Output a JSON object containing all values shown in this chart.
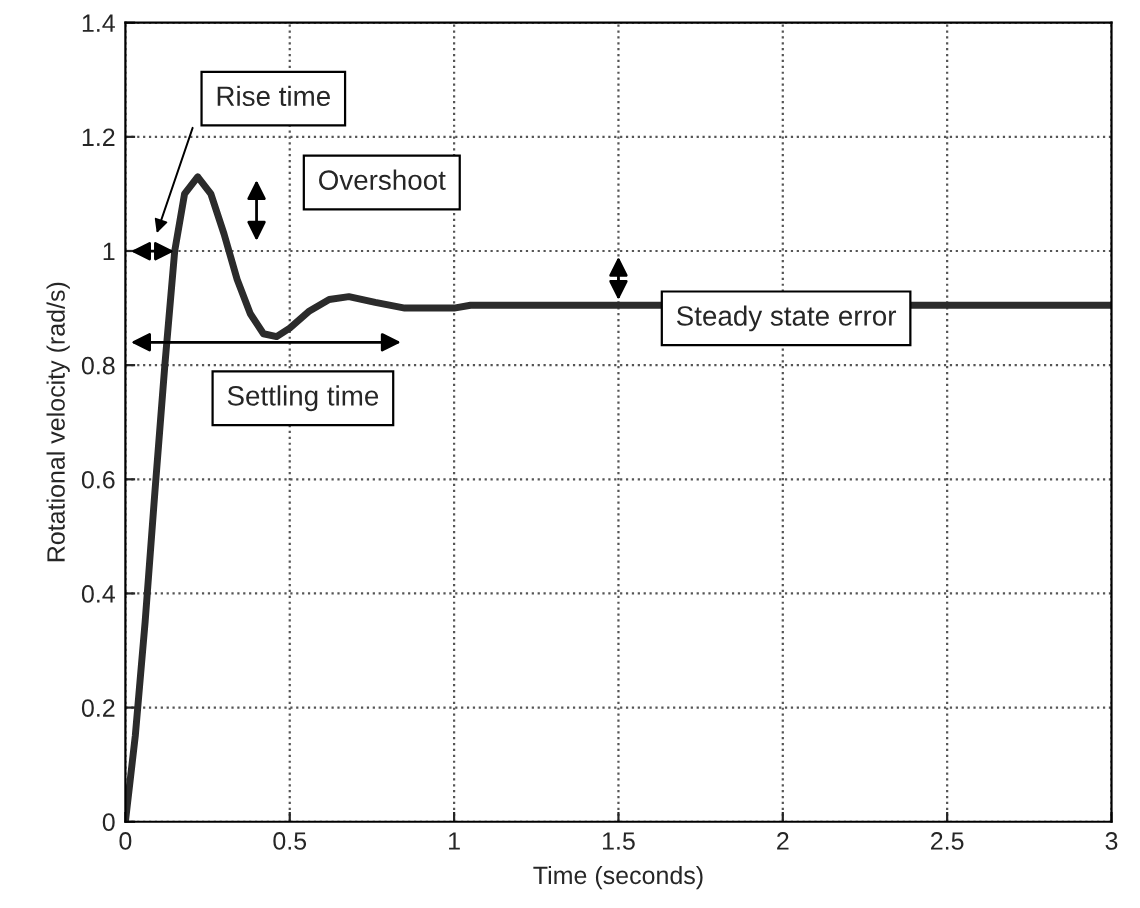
{
  "chart_data": {
    "type": "line",
    "xlabel": "Time (seconds)",
    "ylabel": "Rotational velocity (rad/s)",
    "x": [
      0,
      0.03,
      0.06,
      0.09,
      0.12,
      0.15,
      0.18,
      0.22,
      0.26,
      0.3,
      0.34,
      0.38,
      0.42,
      0.46,
      0.5,
      0.56,
      0.62,
      0.68,
      0.76,
      0.85,
      1.0,
      1.05,
      3
    ],
    "series": [
      {
        "color": "#2b2b2b",
        "values": [
          0,
          0.15,
          0.35,
          0.58,
          0.8,
          1.0,
          1.1,
          1.13,
          1.1,
          1.03,
          0.95,
          0.89,
          0.855,
          0.85,
          0.865,
          0.895,
          0.915,
          0.92,
          0.91,
          0.9,
          0.9,
          0.905,
          0.905
        ]
      }
    ],
    "xlim": [
      0,
      3
    ],
    "ylim": [
      0,
      1.4
    ],
    "xticks": [
      0,
      0.5,
      1,
      1.5,
      2,
      2.5,
      3
    ],
    "yticks": [
      0,
      0.2,
      0.4,
      0.6,
      0.8,
      1,
      1.2,
      1.4
    ],
    "grid": true,
    "marker": "none",
    "line_style": "solid",
    "legend": false,
    "annotations": [
      "Rise time",
      "Overshoot",
      "Steady state error",
      "Settling time"
    ]
  }
}
